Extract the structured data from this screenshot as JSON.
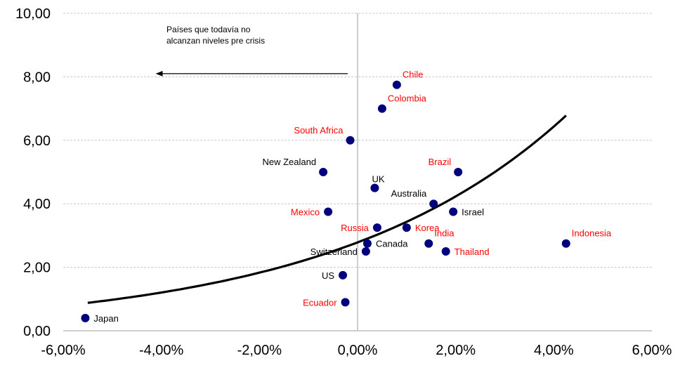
{
  "chart_data": {
    "type": "scatter",
    "x_axis": {
      "min": -6,
      "max": 6,
      "step": 2,
      "tick_labels": [
        "-6,00%",
        "-4,00%",
        "-2,00%",
        "0,00%",
        "2,00%",
        "4,00%",
        "6,00%"
      ]
    },
    "y_axis": {
      "min": 0,
      "max": 10,
      "step": 2,
      "tick_labels": [
        "0,00",
        "2,00",
        "4,00",
        "6,00",
        "8,00",
        "10,00"
      ]
    },
    "grid": "horizontal dashed",
    "annotation": {
      "lines": [
        "Países que todavía no",
        "alcanzan niveles pre crisis"
      ],
      "arrow_from": [
        -0.2,
        8.1
      ],
      "arrow_to": [
        -4.1,
        8.1
      ]
    },
    "colors": {
      "point": "#00007f",
      "label_highlight": "#ff0000",
      "label_default": "#000000",
      "trend": "#000000",
      "grid": "#c8c8c8",
      "axis": "#bdbdbd"
    },
    "trendline": {
      "type": "exponential",
      "x_start": -5.5,
      "x_end": 4.25,
      "y_start": 0.88,
      "y_end": 6.78
    },
    "points": [
      {
        "label": "Chile",
        "x": 0.8,
        "y": 7.75,
        "highlight": true,
        "pos": "above-right"
      },
      {
        "label": "Colombia",
        "x": 0.5,
        "y": 7.0,
        "highlight": true,
        "pos": "above-right"
      },
      {
        "label": "South Africa",
        "x": -0.15,
        "y": 6.0,
        "highlight": true,
        "pos": "above-left"
      },
      {
        "label": "New Zealand",
        "x": -0.7,
        "y": 5.0,
        "highlight": false,
        "pos": "above-left"
      },
      {
        "label": "UK",
        "x": 0.35,
        "y": 4.5,
        "highlight": false,
        "pos": "above"
      },
      {
        "label": "Brazil",
        "x": 2.05,
        "y": 5.0,
        "highlight": true,
        "pos": "above-left"
      },
      {
        "label": "Australia",
        "x": 1.55,
        "y": 4.0,
        "highlight": false,
        "pos": "above-left"
      },
      {
        "label": "Israel",
        "x": 1.95,
        "y": 3.75,
        "highlight": false,
        "pos": "right"
      },
      {
        "label": "Mexico",
        "x": -0.6,
        "y": 3.75,
        "highlight": true,
        "pos": "left"
      },
      {
        "label": "Russia",
        "x": 0.4,
        "y": 3.25,
        "highlight": true,
        "pos": "left"
      },
      {
        "label": "Korea",
        "x": 1.0,
        "y": 3.25,
        "highlight": true,
        "pos": "right"
      },
      {
        "label": "Canada",
        "x": 0.2,
        "y": 2.75,
        "highlight": false,
        "pos": "right"
      },
      {
        "label": "Switzerland",
        "x": 0.17,
        "y": 2.5,
        "highlight": false,
        "pos": "left"
      },
      {
        "label": "India",
        "x": 1.45,
        "y": 2.75,
        "highlight": true,
        "pos": "above-right"
      },
      {
        "label": "Thailand",
        "x": 1.8,
        "y": 2.5,
        "highlight": true,
        "pos": "right"
      },
      {
        "label": "Indonesia",
        "x": 4.25,
        "y": 2.75,
        "highlight": true,
        "pos": "above-right"
      },
      {
        "label": "US",
        "x": -0.3,
        "y": 1.75,
        "highlight": false,
        "pos": "left"
      },
      {
        "label": "Ecuador",
        "x": -0.25,
        "y": 0.9,
        "highlight": true,
        "pos": "left"
      },
      {
        "label": "Japan",
        "x": -5.55,
        "y": 0.4,
        "highlight": false,
        "pos": "right"
      }
    ]
  }
}
